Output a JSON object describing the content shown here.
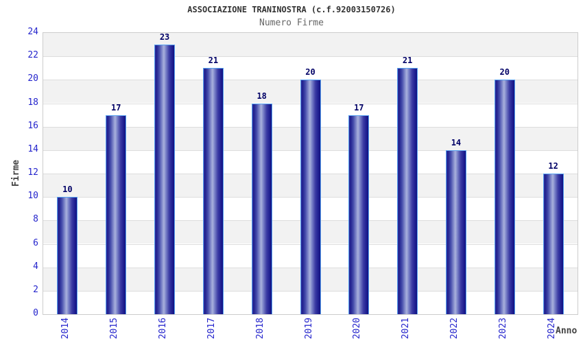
{
  "chart_data": {
    "type": "bar",
    "title": "ASSOCIAZIONE TRANINOSTRA (c.f.92003150726)",
    "subtitle": "Numero Firme",
    "xlabel": "Anno",
    "ylabel": "Firme",
    "categories": [
      "2014",
      "2015",
      "2016",
      "2017",
      "2018",
      "2019",
      "2020",
      "2021",
      "2022",
      "2023",
      "2024"
    ],
    "values": [
      10,
      17,
      23,
      21,
      18,
      20,
      17,
      21,
      14,
      20,
      12
    ],
    "ylim": [
      0,
      24
    ],
    "ytick_step": 2,
    "grid": "horizontal alternating bands with gridlines every 2 units",
    "legend": "none",
    "colors": {
      "tick_label": "#2424cc",
      "value_label": "#000066",
      "title": "#333333",
      "subtitle": "#666666",
      "axis_title": "#444444",
      "band": "#f2f2f2",
      "band_alt": "#ffffff",
      "gridline": "#dddddd",
      "plot_border": "#cccccc",
      "bar_border": "#55a0f0",
      "bar_gradient": [
        "#31319e 0%",
        "#20208e 7%",
        "#454cab 22%",
        "#8890ce 38%",
        "#a9b1dc 46%",
        "#7e86ca 56%",
        "#3c3ca4 74%",
        "#222294 88%",
        "#121280 100%"
      ]
    }
  }
}
